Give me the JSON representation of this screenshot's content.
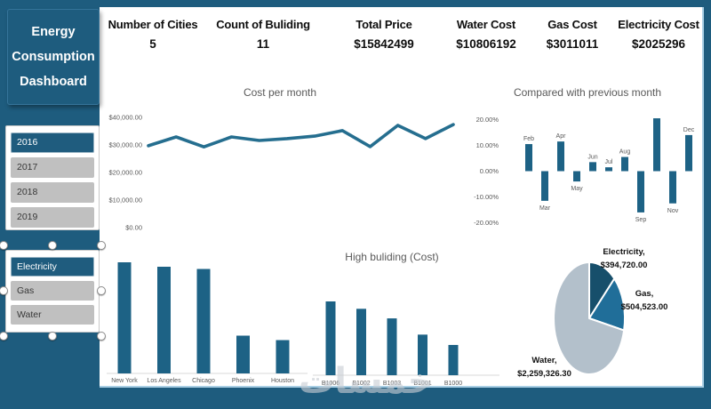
{
  "sidebar": {
    "title_lines": [
      "Energy",
      "Consumption",
      "Dashboard"
    ],
    "year_slicer": {
      "items": [
        {
          "label": "2016",
          "selected": true
        },
        {
          "label": "2017",
          "selected": false
        },
        {
          "label": "2018",
          "selected": false
        },
        {
          "label": "2019",
          "selected": false
        }
      ]
    },
    "category_slicer": {
      "items": [
        {
          "label": "Electricity",
          "selected": true
        },
        {
          "label": "Gas",
          "selected": false
        },
        {
          "label": "Water",
          "selected": false
        }
      ]
    }
  },
  "kpis": [
    {
      "label": "Number of Cities",
      "value": "5"
    },
    {
      "label": "Count of Buliding",
      "value": "11"
    },
    {
      "label": "Total Price",
      "value": "$15842499"
    },
    {
      "label": "Water Cost",
      "value": "$10806192"
    },
    {
      "label": "Gas Cost",
      "value": "$3011011"
    },
    {
      "label": "Electricity Cost",
      "value": "$2025296"
    }
  ],
  "chart_data": [
    {
      "id": "cost_per_month",
      "type": "line",
      "title": "Cost per month",
      "values": [
        29700,
        32900,
        29300,
        32900,
        31600,
        32300,
        33200,
        35200,
        29400,
        37100,
        32300,
        37400
      ],
      "ylim": [
        0,
        40000
      ],
      "yticks": [
        {
          "value": 40000,
          "label": "$40,000.00"
        },
        {
          "value": 30000,
          "label": "$30,000.00"
        },
        {
          "value": 20000,
          "label": "$20,000.00"
        },
        {
          "value": 10000,
          "label": "$10,000.00"
        },
        {
          "value": 0,
          "label": "$0.00"
        }
      ],
      "x_axis_labels_visible": false,
      "grid": false,
      "line_color": "#256E8F"
    },
    {
      "id": "compared_prev_month",
      "type": "bar",
      "title": "Compared with previous month",
      "categories": [
        "Feb",
        "Mar",
        "Apr",
        "May",
        "Jun",
        "Jul",
        "Aug",
        "Sep",
        "",
        "Nov",
        "Dec"
      ],
      "values": [
        10.5,
        -11.5,
        11.5,
        -4,
        3.5,
        1.5,
        5.5,
        -16,
        20.5,
        -12.5,
        14
      ],
      "value_unit": "percent",
      "ylim": [
        -20,
        20
      ],
      "yticks": [
        {
          "value": 20,
          "label": "20.00%"
        },
        {
          "value": 10,
          "label": "10.00%"
        },
        {
          "value": 0,
          "label": "0.00%"
        },
        {
          "value": -10,
          "label": "-10.00%"
        },
        {
          "value": -20,
          "label": "-20.00%"
        }
      ],
      "grid": false,
      "bar_color": "#1D6285"
    },
    {
      "id": "city_cost",
      "type": "bar",
      "title": "",
      "categories": [
        "New York",
        "Los Angeles",
        "Chicago",
        "Phoenix",
        "Houston"
      ],
      "values": [
        100,
        96,
        94,
        34,
        30
      ],
      "value_unit": "relative_pct_of_max",
      "yticks": [],
      "grid": false,
      "bar_color": "#1D6285"
    },
    {
      "id": "high_building_cost",
      "type": "bar",
      "title": "High buliding (Cost)",
      "categories": [
        "B1006",
        "B1002",
        "B1003",
        "B1001",
        "B1000"
      ],
      "values": [
        100,
        90,
        77,
        55,
        41
      ],
      "value_unit": "relative_pct_of_max",
      "yticks": [],
      "grid": false,
      "bar_color": "#1D6285"
    },
    {
      "id": "cost_share_pie",
      "type": "pie",
      "slices": [
        {
          "name": "Electricity",
          "label": "Electricity,",
          "value_label": "$394,720.00",
          "value": 394720,
          "color": "#174F6B"
        },
        {
          "name": "Gas",
          "label": "Gas,",
          "value_label": "$504,523.00",
          "value": 504523,
          "color": "#206E99"
        },
        {
          "name": "Water",
          "label": "Water,",
          "value_label": "$2,259,326.30",
          "value": 2259326.3,
          "color": "#B3C0CB"
        }
      ]
    }
  ],
  "watermark": "خمسات",
  "colors": {
    "frame": "#1E5C7E",
    "selected_item": "#1F5C7E",
    "unselected_item": "#C0C0C0",
    "chart_text": "#595959",
    "bar": "#1D6285",
    "line": "#256E8F",
    "panel_edge": "#A9CFE5"
  }
}
